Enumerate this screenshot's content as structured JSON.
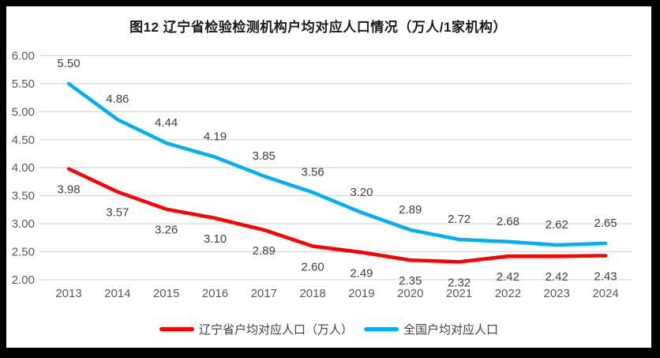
{
  "title": "图12 辽宁省检验检测机构户均对应人口情况（万人/1家机构）",
  "chart_data": {
    "type": "line",
    "title": "图12 辽宁省检验检测机构户均对应人口情况（万人/1家机构）",
    "x": [
      "2013",
      "2014",
      "2015",
      "2016",
      "2017",
      "2018",
      "2019",
      "2020",
      "2021",
      "2022",
      "2023",
      "2024"
    ],
    "series": [
      {
        "name": "辽宁省户均对应人口（万人）",
        "color": "#FF0000",
        "values": [
          3.98,
          3.57,
          3.26,
          3.1,
          2.89,
          2.6,
          2.49,
          2.35,
          2.32,
          2.42,
          2.42,
          2.43
        ],
        "label_position": "below"
      },
      {
        "name": "全国户均对应人口",
        "color": "#00B0F0",
        "values": [
          5.5,
          4.86,
          4.44,
          4.19,
          3.85,
          3.56,
          3.2,
          2.89,
          2.72,
          2.68,
          2.62,
          2.65
        ],
        "label_position": "above"
      }
    ],
    "ylim": [
      2.0,
      6.0
    ],
    "ytick_step": 0.5,
    "xlabel": "",
    "ylabel": "",
    "grid": true,
    "gridline_color": "#D9D9D9",
    "axis_text_color": "#595959",
    "data_label_color": "#404040",
    "legend_position": "bottom"
  }
}
